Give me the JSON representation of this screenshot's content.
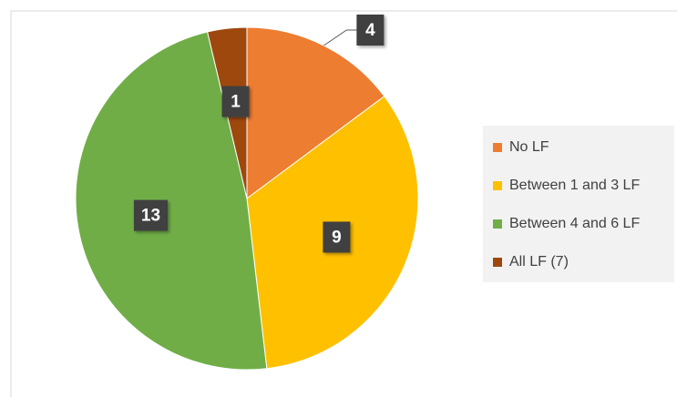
{
  "chart_data": {
    "type": "pie",
    "categories": [
      "No LF",
      "Between 1 and 3 LF",
      "Between 4 and 6 LF",
      "All LF (7)"
    ],
    "values": [
      4,
      9,
      13,
      1
    ],
    "colors": [
      "#ED7D31",
      "#FFC000",
      "#70AD47",
      "#9E480E"
    ],
    "legend": "right"
  }
}
